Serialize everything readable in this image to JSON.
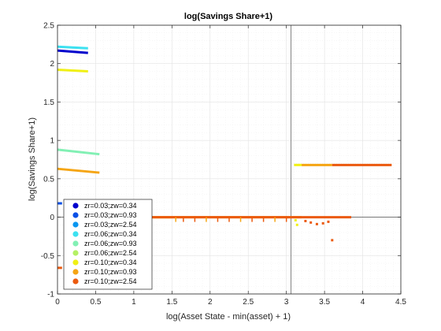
{
  "chart_data": {
    "type": "scatter",
    "title": "log(Savings Share+1)",
    "xlabel": "log(Asset State - min(asset) + 1)",
    "ylabel": "log(Savings Share+1)",
    "xlim": [
      0,
      4.5
    ],
    "ylim": [
      -1,
      2.5
    ],
    "xticks": [
      0,
      0.5,
      1,
      1.5,
      2,
      2.5,
      3,
      3.5,
      4,
      4.5
    ],
    "xtick_labels": [
      "0",
      "0.5",
      "1",
      "1.5",
      "2",
      "2.5",
      "3",
      "3.5",
      "4",
      "4.5"
    ],
    "yticks": [
      -1,
      -0.5,
      0,
      0.5,
      1,
      1.5,
      2,
      2.5
    ],
    "ytick_labels": [
      "-1",
      "-0.5",
      "0",
      "0.5",
      "1",
      "1.5",
      "2",
      "2.5"
    ],
    "grid": true,
    "minor_grid": true,
    "legend_position": "bottom-left",
    "reference_lines": {
      "x": 3.06,
      "y": 0
    },
    "series": [
      {
        "name": "zr=0.03;zw=0.34",
        "color": "#0000cc",
        "segments": [
          {
            "x": [
              0,
              0.4
            ],
            "y": [
              2.17,
              2.14
            ]
          }
        ],
        "points": []
      },
      {
        "name": "zr=0.03;zw=0.93",
        "color": "#0a50e6",
        "segments": [
          {
            "x": [
              0,
              0.06
            ],
            "y": [
              0.18,
              0.18
            ]
          }
        ],
        "points": []
      },
      {
        "name": "zr=0.03;zw=2.54",
        "color": "#0a96f0",
        "segments": [],
        "points": []
      },
      {
        "name": "zr=0.06;zw=0.34",
        "color": "#3ce1f0",
        "segments": [
          {
            "x": [
              0,
              0.4
            ],
            "y": [
              2.22,
              2.2
            ]
          }
        ],
        "points": []
      },
      {
        "name": "zr=0.06;zw=0.93",
        "color": "#82f0b4",
        "segments": [
          {
            "x": [
              0,
              0.55
            ],
            "y": [
              0.88,
              0.82
            ]
          }
        ],
        "points": []
      },
      {
        "name": "zr=0.06;zw=2.54",
        "color": "#b4f064",
        "segments": [],
        "points": []
      },
      {
        "name": "zr=0.10;zw=0.34",
        "color": "#f0f014",
        "segments": [
          {
            "x": [
              0,
              0.4
            ],
            "y": [
              1.92,
              1.9
            ]
          },
          {
            "x": [
              0.45,
              1.5
            ],
            "y": [
              0,
              0
            ]
          },
          {
            "x": [
              3.1,
              3.2
            ],
            "y": [
              0.68,
              0.68
            ]
          }
        ],
        "points": [
          {
            "x": 3.12,
            "y": -0.04
          },
          {
            "x": 3.14,
            "y": -0.1
          }
        ]
      },
      {
        "name": "zr=0.10;zw=0.93",
        "color": "#f5a514",
        "segments": [
          {
            "x": [
              0,
              0.55
            ],
            "y": [
              0.63,
              0.58
            ]
          },
          {
            "x": [
              0.5,
              3.2
            ],
            "y": [
              0,
              0
            ]
          },
          {
            "x": [
              3.2,
              3.6
            ],
            "y": [
              0.68,
              0.68
            ]
          }
        ],
        "points": []
      },
      {
        "name": "zr=0.10;zw=2.54",
        "color": "#eb5a0f",
        "segments": [
          {
            "x": [
              0,
              0.06
            ],
            "y": [
              -0.66,
              -0.66
            ]
          },
          {
            "x": [
              1,
              3.85
            ],
            "y": [
              0,
              0
            ]
          },
          {
            "x": [
              3.6,
              4.38
            ],
            "y": [
              0.68,
              0.68
            ]
          }
        ],
        "points": [
          {
            "x": 3.25,
            "y": -0.05
          },
          {
            "x": 3.32,
            "y": -0.07
          },
          {
            "x": 3.4,
            "y": -0.09
          },
          {
            "x": 3.48,
            "y": -0.08
          },
          {
            "x": 3.55,
            "y": -0.06
          },
          {
            "x": 3.6,
            "y": -0.3
          }
        ]
      }
    ],
    "ticks_on_zero_line": [
      {
        "x": 1.55,
        "color": "#f5a514"
      },
      {
        "x": 1.65,
        "color": "#eb5a0f"
      },
      {
        "x": 1.8,
        "color": "#eb5a0f"
      },
      {
        "x": 1.95,
        "color": "#f5a514"
      },
      {
        "x": 2.1,
        "color": "#eb5a0f"
      },
      {
        "x": 2.25,
        "color": "#eb5a0f"
      },
      {
        "x": 2.4,
        "color": "#f5a514"
      },
      {
        "x": 2.55,
        "color": "#eb5a0f"
      },
      {
        "x": 2.7,
        "color": "#eb5a0f"
      },
      {
        "x": 2.85,
        "color": "#f5a514"
      },
      {
        "x": 3.0,
        "color": "#eb5a0f"
      }
    ]
  }
}
